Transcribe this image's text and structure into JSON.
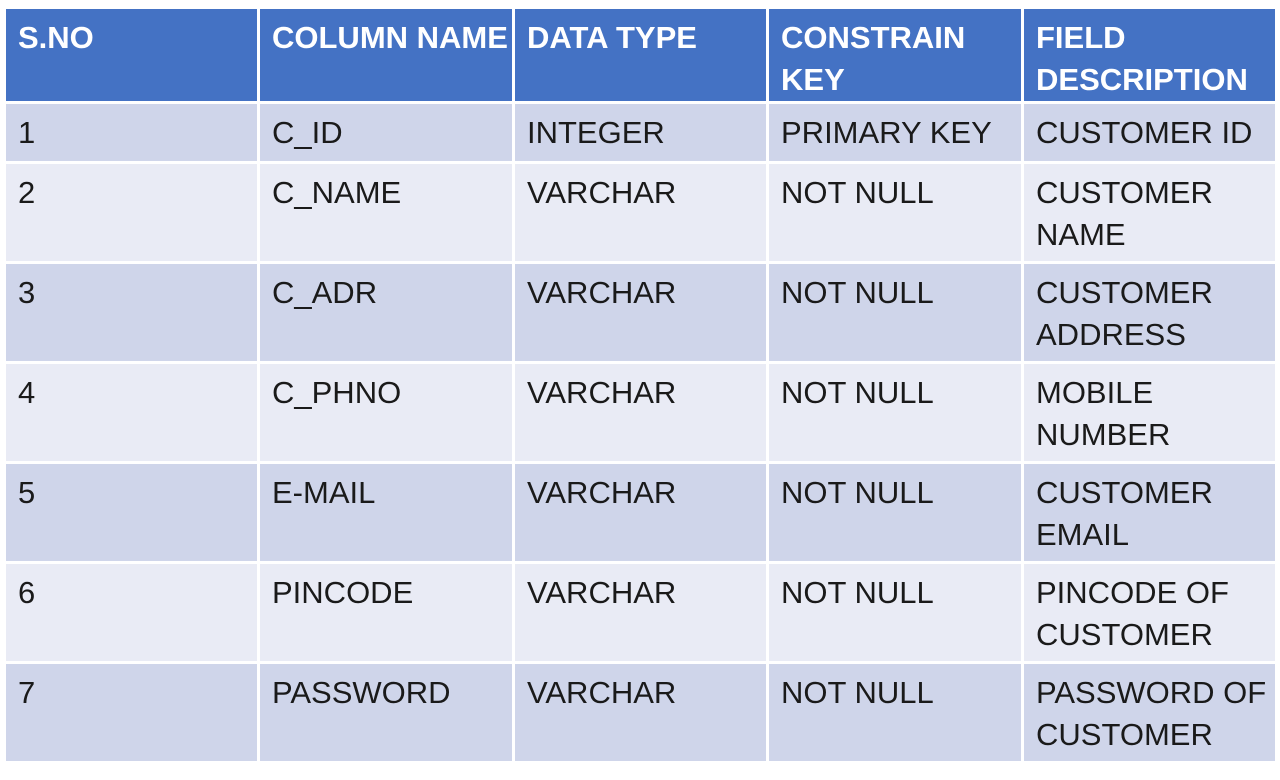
{
  "table": {
    "headers": [
      "S.NO",
      "COLUMN NAME",
      "DATA TYPE",
      "CONSTRAIN KEY",
      "FIELD DESCRIPTION"
    ],
    "rows": [
      [
        "1",
        "C_ID",
        "INTEGER",
        "PRIMARY KEY",
        "CUSTOMER ID"
      ],
      [
        "2",
        "C_NAME",
        "VARCHAR",
        "NOT NULL",
        "CUSTOMER NAME"
      ],
      [
        "3",
        "C_ADR",
        "VARCHAR",
        "NOT NULL",
        "CUSTOMER ADDRESS"
      ],
      [
        "4",
        "C_PHNO",
        "VARCHAR",
        "NOT NULL",
        "MOBILE NUMBER"
      ],
      [
        "5",
        "E-MAIL",
        "VARCHAR",
        "NOT NULL",
        "CUSTOMER EMAIL"
      ],
      [
        "6",
        "PINCODE",
        "VARCHAR",
        "NOT NULL",
        "PINCODE OF CUSTOMER"
      ],
      [
        "7",
        "PASSWORD",
        "VARCHAR",
        "NOT NULL",
        "PASSWORD OF CUSTOMER"
      ]
    ]
  },
  "colors": {
    "header_bg": "#4472c4",
    "header_text": "#ffffff",
    "row_odd_bg": "#cfd5ea",
    "row_even_bg": "#e9ebf5"
  }
}
